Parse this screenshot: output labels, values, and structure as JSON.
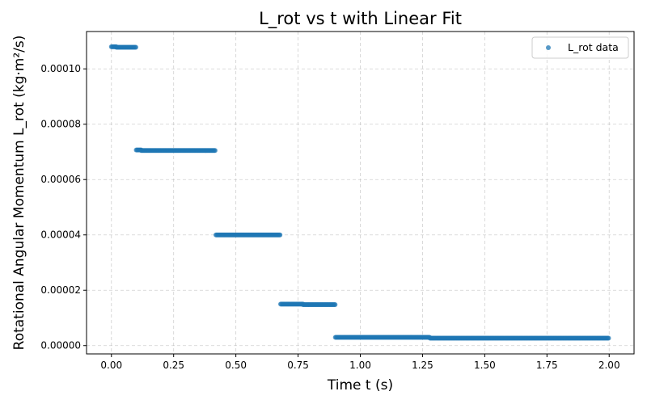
{
  "chart_data": {
    "type": "scatter",
    "title": "L_rot vs t with Linear Fit",
    "xlabel": "Time t (s)",
    "ylabel": "Rotational Angular Momentum L_rot (kg·m²/s)",
    "xlim": [
      -0.1,
      2.1
    ],
    "ylim": [
      -3e-06,
      0.0001135
    ],
    "xticks": [
      0.0,
      0.25,
      0.5,
      0.75,
      1.0,
      1.25,
      1.5,
      1.75,
      2.0
    ],
    "xtick_labels": [
      "0.00",
      "0.25",
      "0.50",
      "0.75",
      "1.00",
      "1.25",
      "1.50",
      "1.75",
      "2.00"
    ],
    "yticks": [
      0.0,
      2e-05,
      4e-05,
      6e-05,
      8e-05,
      0.0001
    ],
    "ytick_labels": [
      "0.00000",
      "0.00002",
      "0.00004",
      "0.00006",
      "0.00008",
      "0.00010"
    ],
    "grid": true,
    "legend_position": "top-right",
    "series": [
      {
        "name": "L_rot data",
        "color": "#1f77b4",
        "segments": [
          {
            "x_start": 0.0,
            "x_end": 0.02,
            "y": 0.000108
          },
          {
            "x_start": 0.02,
            "x_end": 0.1,
            "y": 0.0001078
          },
          {
            "x_start": 0.1,
            "x_end": 0.12,
            "y": 7.07e-05
          },
          {
            "x_start": 0.12,
            "x_end": 0.42,
            "y": 7.05e-05
          },
          {
            "x_start": 0.42,
            "x_end": 0.68,
            "y": 4e-05
          },
          {
            "x_start": 0.68,
            "x_end": 0.77,
            "y": 1.5e-05
          },
          {
            "x_start": 0.77,
            "x_end": 0.9,
            "y": 1.48e-05
          },
          {
            "x_start": 0.9,
            "x_end": 1.28,
            "y": 3e-06
          },
          {
            "x_start": 1.28,
            "x_end": 2.0,
            "y": 2.7e-06
          }
        ]
      }
    ]
  }
}
